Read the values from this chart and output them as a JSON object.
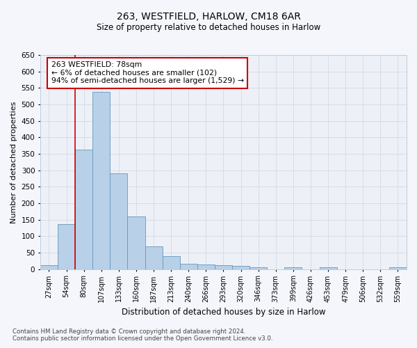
{
  "title_line1": "263, WESTFIELD, HARLOW, CM18 6AR",
  "title_line2": "Size of property relative to detached houses in Harlow",
  "xlabel": "Distribution of detached houses by size in Harlow",
  "ylabel": "Number of detached properties",
  "categories": [
    "27sqm",
    "54sqm",
    "80sqm",
    "107sqm",
    "133sqm",
    "160sqm",
    "187sqm",
    "213sqm",
    "240sqm",
    "266sqm",
    "293sqm",
    "320sqm",
    "346sqm",
    "373sqm",
    "399sqm",
    "426sqm",
    "453sqm",
    "479sqm",
    "506sqm",
    "532sqm",
    "559sqm"
  ],
  "values": [
    11,
    137,
    363,
    538,
    291,
    160,
    68,
    39,
    17,
    15,
    12,
    9,
    5,
    0,
    5,
    0,
    5,
    0,
    0,
    0,
    5
  ],
  "bar_color": "#b8d0e8",
  "bar_edge_color": "#6699bb",
  "grid_color": "#d5dde8",
  "annotation_text": "263 WESTFIELD: 78sqm\n← 6% of detached houses are smaller (102)\n94% of semi-detached houses are larger (1,529) →",
  "annotation_box_color": "#ffffff",
  "annotation_box_edge": "#cc0000",
  "vline_color": "#cc0000",
  "ylim": [
    0,
    650
  ],
  "yticks": [
    0,
    50,
    100,
    150,
    200,
    250,
    300,
    350,
    400,
    450,
    500,
    550,
    600,
    650
  ],
  "footnote_line1": "Contains HM Land Registry data © Crown copyright and database right 2024.",
  "footnote_line2": "Contains public sector information licensed under the Open Government Licence v3.0.",
  "bg_color": "#f4f6fb",
  "plot_bg_color": "#edf1f7"
}
